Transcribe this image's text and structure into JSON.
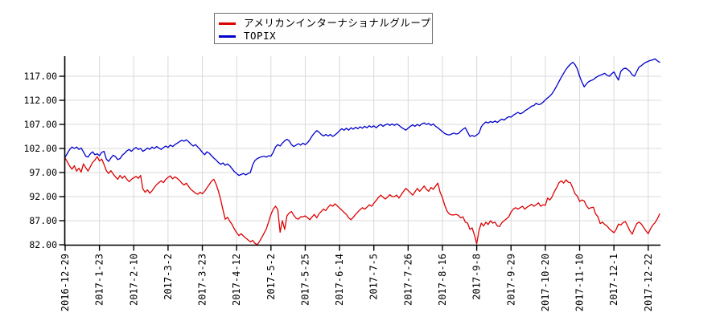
{
  "chart_data": {
    "type": "line",
    "title": "",
    "xlabel": "",
    "ylabel": "",
    "x_unit": "trading-day-index (daily close, normalized to 100 at 2016-12-29)",
    "grid": true,
    "legend_position": "top-center",
    "ylim": [
      82,
      121.2
    ],
    "y_ticks": [
      117,
      112,
      107,
      102,
      97,
      92,
      87,
      82
    ],
    "y_tick_labels": [
      "117.00",
      "112.00",
      "107.00",
      "102.00",
      "97.00",
      "92.00",
      "87.00",
      "82.00"
    ],
    "x_ticks": [
      {
        "d": 0,
        "label": "2016-12-29"
      },
      {
        "d": 15,
        "label": "2017-1-23"
      },
      {
        "d": 30,
        "label": "2017-2-10"
      },
      {
        "d": 45,
        "label": "2017-3-2"
      },
      {
        "d": 60,
        "label": "2017-3-23"
      },
      {
        "d": 75,
        "label": "2017-4-12"
      },
      {
        "d": 90,
        "label": "2017-5-2"
      },
      {
        "d": 105,
        "label": "2017-5-25"
      },
      {
        "d": 120,
        "label": "2017-6-14"
      },
      {
        "d": 135,
        "label": "2017-7-5"
      },
      {
        "d": 150,
        "label": "2017-7-26"
      },
      {
        "d": 165,
        "label": "2017-8-16"
      },
      {
        "d": 180,
        "label": "2017-9-8"
      },
      {
        "d": 195,
        "label": "2017-9-29"
      },
      {
        "d": 210,
        "label": "2017-10-20"
      },
      {
        "d": 225,
        "label": "2017-11-10"
      },
      {
        "d": 240,
        "label": "2017-12-1"
      },
      {
        "d": 255,
        "label": "2017-12-22"
      }
    ],
    "series": [
      {
        "name": "アメリカンインターナショナルグループ",
        "color": "#dd0000",
        "values": [
          100.0,
          99.2,
          98.3,
          97.7,
          98.4,
          97.3,
          97.9,
          97.1,
          98.8,
          98.0,
          97.3,
          98.2,
          99.1,
          99.6,
          100.3,
          99.4,
          99.8,
          98.7,
          97.4,
          96.8,
          97.4,
          96.7,
          96.1,
          95.6,
          96.4,
          95.8,
          96.3,
          95.6,
          95.1,
          95.6,
          95.9,
          96.2,
          95.8,
          96.4,
          93.6,
          92.9,
          93.4,
          92.7,
          93.2,
          93.9,
          94.5,
          94.9,
          95.3,
          94.9,
          95.6,
          96.0,
          96.3,
          95.7,
          96.1,
          95.8,
          95.4,
          94.8,
          94.4,
          94.8,
          94.1,
          93.5,
          93.1,
          92.7,
          92.5,
          92.9,
          92.6,
          93.1,
          93.8,
          94.5,
          95.2,
          95.6,
          94.6,
          93.2,
          91.4,
          89.3,
          87.3,
          87.7,
          86.9,
          86.2,
          85.3,
          84.5,
          83.9,
          84.3,
          83.8,
          83.4,
          83.0,
          82.6,
          82.9,
          82.3,
          82.0,
          82.7,
          83.5,
          84.4,
          85.3,
          86.8,
          88.3,
          89.4,
          90.0,
          89.3,
          84.6,
          87.0,
          85.2,
          88.0,
          88.6,
          88.9,
          88.1,
          87.5,
          87.3,
          87.8,
          87.8,
          88.0,
          87.6,
          87.2,
          87.8,
          88.3,
          87.6,
          88.4,
          88.9,
          89.4,
          89.1,
          89.8,
          90.3,
          90.0,
          90.5,
          90.1,
          89.6,
          89.2,
          88.7,
          88.3,
          87.6,
          87.2,
          87.7,
          88.3,
          88.8,
          89.3,
          89.7,
          89.4,
          89.8,
          90.3,
          90.0,
          90.6,
          91.2,
          91.8,
          92.3,
          91.9,
          91.5,
          91.9,
          92.4,
          92.0,
          92.0,
          92.3,
          91.7,
          92.4,
          93.1,
          93.7,
          93.3,
          92.8,
          92.3,
          93.0,
          93.7,
          93.1,
          93.6,
          94.2,
          93.5,
          93.1,
          93.9,
          93.5,
          94.2,
          94.8,
          92.9,
          91.8,
          90.2,
          89.0,
          88.4,
          88.2,
          88.2,
          88.3,
          88.1,
          87.6,
          87.8,
          86.7,
          86.5,
          85.2,
          85.5,
          84.0,
          82.2,
          85.0,
          86.5,
          85.9,
          86.7,
          86.2,
          87.0,
          86.5,
          86.7,
          85.9,
          85.8,
          86.6,
          87.0,
          87.4,
          87.8,
          88.8,
          89.4,
          89.7,
          89.4,
          89.7,
          90.0,
          89.4,
          89.8,
          90.1,
          90.4,
          90.0,
          90.3,
          90.7,
          90.0,
          90.3,
          90.2,
          91.7,
          91.3,
          92.0,
          93.1,
          93.9,
          94.9,
          95.3,
          94.8,
          95.5,
          95.0,
          94.9,
          93.8,
          92.6,
          92.1,
          91.0,
          91.3,
          91.1,
          90.1,
          89.5,
          89.7,
          89.8,
          88.4,
          87.8,
          86.4,
          86.7,
          86.2,
          85.9,
          85.3,
          84.9,
          84.5,
          85.2,
          86.3,
          86.1,
          86.6,
          86.8,
          85.9,
          84.9,
          84.2,
          85.4,
          86.4,
          86.7,
          86.3,
          85.6,
          84.9,
          84.3,
          85.3,
          86.1,
          86.6,
          87.4,
          88.4
        ]
      },
      {
        "name": "TOPIX",
        "color": "#0000cc",
        "values": [
          100.2,
          101.0,
          101.8,
          102.3,
          102.0,
          102.3,
          101.8,
          102.1,
          101.3,
          100.4,
          100.2,
          100.9,
          101.3,
          100.7,
          100.9,
          100.5,
          101.2,
          101.4,
          99.8,
          99.3,
          100.0,
          100.6,
          100.3,
          99.7,
          99.9,
          100.6,
          101.0,
          101.5,
          101.8,
          101.4,
          101.9,
          102.2,
          101.8,
          102.0,
          101.4,
          101.7,
          102.1,
          101.8,
          102.3,
          102.0,
          102.4,
          102.1,
          101.8,
          102.2,
          102.5,
          102.2,
          102.7,
          102.4,
          102.8,
          103.1,
          103.4,
          103.7,
          103.5,
          103.8,
          103.4,
          102.9,
          102.5,
          102.8,
          102.3,
          101.8,
          101.2,
          100.7,
          101.3,
          101.0,
          100.5,
          100.0,
          99.6,
          99.1,
          98.7,
          99.0,
          98.5,
          98.8,
          98.4,
          97.8,
          97.2,
          96.8,
          96.4,
          96.6,
          96.8,
          96.5,
          96.8,
          97.0,
          98.6,
          99.5,
          99.9,
          100.1,
          100.3,
          100.4,
          100.2,
          100.5,
          100.4,
          101.2,
          102.3,
          102.8,
          102.5,
          103.1,
          103.6,
          103.9,
          103.6,
          102.8,
          102.4,
          102.7,
          103.0,
          102.7,
          103.1,
          102.8,
          103.2,
          103.8,
          104.6,
          105.2,
          105.7,
          105.4,
          104.9,
          104.6,
          104.9,
          104.6,
          104.9,
          104.5,
          104.8,
          105.2,
          105.7,
          106.1,
          105.8,
          106.2,
          105.8,
          106.3,
          106.0,
          106.4,
          106.1,
          106.5,
          106.2,
          106.6,
          106.3,
          106.7,
          106.4,
          106.7,
          106.3,
          106.7,
          107.0,
          106.6,
          106.9,
          107.1,
          106.8,
          107.1,
          106.8,
          107.1,
          106.8,
          106.4,
          106.1,
          105.8,
          106.2,
          106.6,
          106.9,
          106.6,
          107.0,
          106.7,
          107.1,
          107.3,
          107.0,
          107.2,
          106.8,
          107.1,
          106.6,
          106.3,
          105.9,
          105.5,
          105.1,
          104.9,
          104.8,
          105.0,
          105.2,
          105.0,
          105.1,
          105.6,
          106.0,
          106.3,
          105.4,
          104.5,
          104.7,
          104.5,
          104.8,
          105.2,
          106.5,
          107.1,
          107.5,
          107.3,
          107.6,
          107.4,
          107.7,
          107.4,
          107.8,
          108.1,
          107.9,
          108.3,
          108.6,
          108.5,
          108.9,
          109.2,
          109.5,
          109.2,
          109.4,
          109.8,
          110.1,
          110.4,
          110.8,
          110.9,
          111.4,
          111.1,
          111.2,
          111.6,
          112.1,
          112.5,
          112.9,
          113.4,
          114.2,
          115.0,
          115.9,
          116.8,
          117.6,
          118.4,
          119.0,
          119.5,
          119.9,
          119.4,
          118.5,
          117.0,
          115.8,
          114.8,
          115.4,
          115.9,
          116.1,
          116.3,
          116.7,
          117.0,
          117.2,
          117.4,
          117.6,
          117.2,
          117.0,
          117.5,
          117.9,
          117.0,
          116.2,
          118.0,
          118.5,
          118.7,
          118.4,
          118.0,
          117.3,
          117.0,
          118.0,
          118.9,
          119.2,
          119.6,
          119.9,
          120.1,
          120.3,
          120.4,
          120.6,
          120.2,
          119.9
        ]
      }
    ],
    "style": {
      "grid_color": "#d9d9d9",
      "spine_color": "#000000",
      "tick_label_color": "#000000",
      "background": "#ffffff"
    }
  }
}
